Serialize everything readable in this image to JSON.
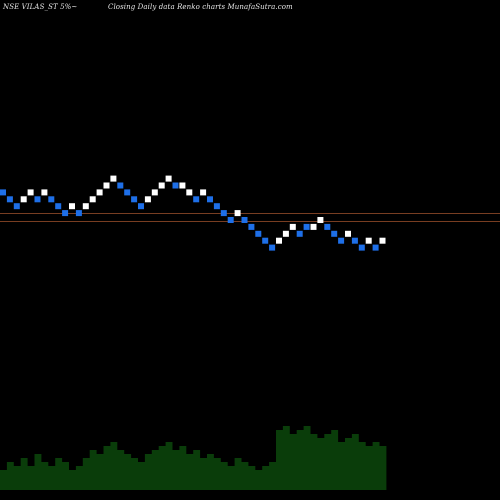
{
  "header": {
    "symbol": "NSE VILAS_ST 5%~",
    "subtitle": "Closing Daily data Renko charts MunafaSutra.com"
  },
  "chart_data": {
    "type": "renko",
    "title": "NSE VILAS_ST 5%~",
    "subtitle": "Closing Daily data Renko charts MunafaSutra.com",
    "grid": false,
    "colors": {
      "up": "#ffffff",
      "down": "#1e6fe8",
      "background": "#000000",
      "volume_fill": "#0a3d0a",
      "reference_line": "#a0522d"
    },
    "bricks": [
      {
        "dir": "down",
        "level": 4
      },
      {
        "dir": "down",
        "level": 3
      },
      {
        "dir": "down",
        "level": 2
      },
      {
        "dir": "up",
        "level": 3
      },
      {
        "dir": "up",
        "level": 4
      },
      {
        "dir": "down",
        "level": 3
      },
      {
        "dir": "up",
        "level": 4
      },
      {
        "dir": "down",
        "level": 3
      },
      {
        "dir": "down",
        "level": 2
      },
      {
        "dir": "down",
        "level": 1
      },
      {
        "dir": "up",
        "level": 2
      },
      {
        "dir": "down",
        "level": 1
      },
      {
        "dir": "up",
        "level": 2
      },
      {
        "dir": "up",
        "level": 3
      },
      {
        "dir": "up",
        "level": 4
      },
      {
        "dir": "up",
        "level": 5
      },
      {
        "dir": "up",
        "level": 6
      },
      {
        "dir": "down",
        "level": 5
      },
      {
        "dir": "down",
        "level": 4
      },
      {
        "dir": "down",
        "level": 3
      },
      {
        "dir": "down",
        "level": 2
      },
      {
        "dir": "up",
        "level": 3
      },
      {
        "dir": "up",
        "level": 4
      },
      {
        "dir": "up",
        "level": 5
      },
      {
        "dir": "up",
        "level": 6
      },
      {
        "dir": "down",
        "level": 5
      },
      {
        "dir": "up",
        "level": 5
      },
      {
        "dir": "up",
        "level": 4
      },
      {
        "dir": "down",
        "level": 3
      },
      {
        "dir": "up",
        "level": 4
      },
      {
        "dir": "down",
        "level": 3
      },
      {
        "dir": "down",
        "level": 2
      },
      {
        "dir": "down",
        "level": 1
      },
      {
        "dir": "down",
        "level": 0
      },
      {
        "dir": "up",
        "level": 1
      },
      {
        "dir": "down",
        "level": 0
      },
      {
        "dir": "down",
        "level": -1
      },
      {
        "dir": "down",
        "level": -2
      },
      {
        "dir": "down",
        "level": -3
      },
      {
        "dir": "down",
        "level": -4
      },
      {
        "dir": "up",
        "level": -3
      },
      {
        "dir": "up",
        "level": -2
      },
      {
        "dir": "up",
        "level": -1
      },
      {
        "dir": "down",
        "level": -2
      },
      {
        "dir": "down",
        "level": -1
      },
      {
        "dir": "up",
        "level": -1
      },
      {
        "dir": "up",
        "level": 0
      },
      {
        "dir": "down",
        "level": -1
      },
      {
        "dir": "down",
        "level": -2
      },
      {
        "dir": "down",
        "level": -3
      },
      {
        "dir": "up",
        "level": -2
      },
      {
        "dir": "down",
        "level": -3
      },
      {
        "dir": "down",
        "level": -4
      },
      {
        "dir": "up",
        "level": -3
      },
      {
        "dir": "down",
        "level": -4
      },
      {
        "dir": "up",
        "level": -3
      }
    ],
    "reference_levels": [
      1,
      0
    ],
    "volume": [
      0.25,
      0.35,
      0.3,
      0.4,
      0.3,
      0.45,
      0.35,
      0.3,
      0.4,
      0.35,
      0.25,
      0.3,
      0.4,
      0.5,
      0.45,
      0.55,
      0.6,
      0.5,
      0.45,
      0.4,
      0.35,
      0.45,
      0.5,
      0.55,
      0.6,
      0.5,
      0.55,
      0.45,
      0.5,
      0.4,
      0.45,
      0.4,
      0.35,
      0.3,
      0.4,
      0.35,
      0.3,
      0.25,
      0.3,
      0.35,
      0.75,
      0.8,
      0.7,
      0.75,
      0.8,
      0.7,
      0.65,
      0.7,
      0.75,
      0.6,
      0.65,
      0.7,
      0.6,
      0.55,
      0.6,
      0.55
    ]
  }
}
